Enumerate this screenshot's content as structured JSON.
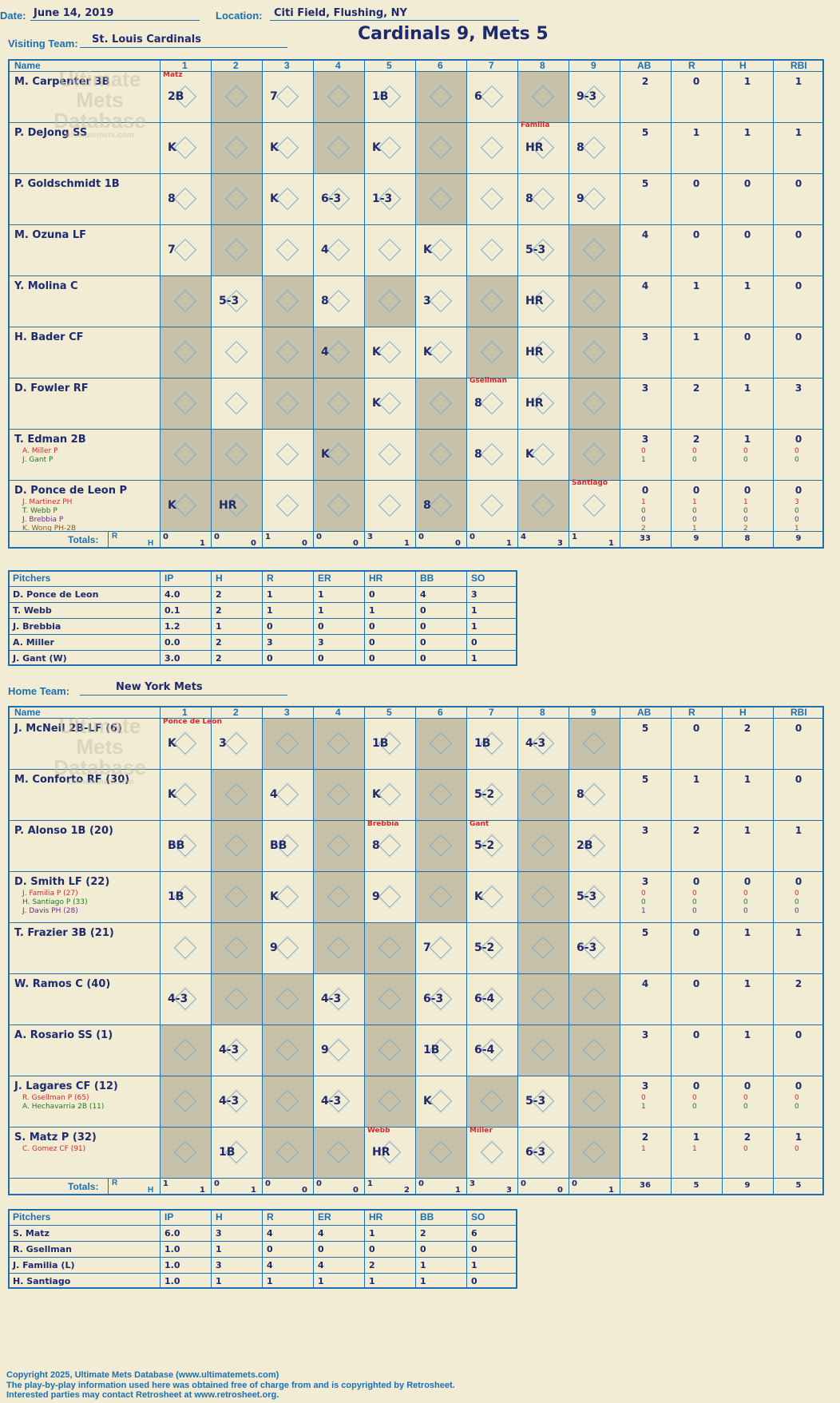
{
  "header": {
    "date_label": "Date:",
    "date_value": "June 14, 2019",
    "location_label": "Location:",
    "location_value": "Citi Field, Flushing, NY",
    "visiting_label": "Visiting Team:",
    "visiting_value": "St. Louis Cardinals",
    "home_label": "Home Team:",
    "home_value": "New York Mets",
    "game_title": "Cardinals 9, Mets 5"
  },
  "watermark": {
    "line1": "Ultimate",
    "line2": "Mets",
    "line3": "Database",
    "line4": "ultimatemets.com"
  },
  "columns": {
    "name": "Name",
    "innings": [
      "1",
      "2",
      "3",
      "4",
      "5",
      "6",
      "7",
      "8",
      "9"
    ],
    "stats": [
      "AB",
      "R",
      "H",
      "RBI"
    ],
    "totals": "Totals:",
    "r": "R",
    "h": "H"
  },
  "visitors": {
    "batters": [
      {
        "name": "M. Carpenter 3B",
        "subs": [],
        "ab": "2",
        "r": "0",
        "h": "1",
        "rbi": "1"
      },
      {
        "name": "P. DeJong SS",
        "subs": [],
        "ab": "5",
        "r": "1",
        "h": "1",
        "rbi": "1"
      },
      {
        "name": "P. Goldschmidt 1B",
        "subs": [],
        "ab": "5",
        "r": "0",
        "h": "0",
        "rbi": "0"
      },
      {
        "name": "M. Ozuna LF",
        "subs": [],
        "ab": "4",
        "r": "0",
        "h": "0",
        "rbi": "0"
      },
      {
        "name": "Y. Molina C",
        "subs": [],
        "ab": "4",
        "r": "1",
        "h": "1",
        "rbi": "0"
      },
      {
        "name": "H. Bader CF",
        "subs": [],
        "ab": "3",
        "r": "1",
        "h": "0",
        "rbi": "0"
      },
      {
        "name": "D. Fowler RF",
        "subs": [],
        "ab": "3",
        "r": "2",
        "h": "1",
        "rbi": "3"
      },
      {
        "name": "T. Edman 2B",
        "subs": [
          {
            "name": "A. Miller P",
            "color": "#d8262a",
            "ab": "0",
            "r": "0",
            "h": "0",
            "rbi": "0"
          },
          {
            "name": "J. Gant P",
            "color": "#1d7a1d",
            "ab": "1",
            "r": "0",
            "h": "0",
            "rbi": "0"
          }
        ],
        "ab": "3",
        "r": "2",
        "h": "1",
        "rbi": "0"
      },
      {
        "name": "D. Ponce de Leon P",
        "subs": [
          {
            "name": "J. Martinez PH",
            "color": "#d8262a",
            "ab": "1",
            "r": "1",
            "h": "1",
            "rbi": "3"
          },
          {
            "name": "T. Webb P",
            "color": "#1d7a1d",
            "ab": "0",
            "r": "0",
            "h": "0",
            "rbi": "0"
          },
          {
            "name": "J. Brebbia P",
            "color": "#6a2a8a",
            "ab": "0",
            "r": "0",
            "h": "0",
            "rbi": "0"
          },
          {
            "name": "K. Wong PH-2B",
            "color": "#8a5a1c",
            "ab": "2",
            "r": "1",
            "h": "2",
            "rbi": "1"
          }
        ],
        "ab": "0",
        "r": "0",
        "h": "0",
        "rbi": "0"
      }
    ],
    "marks": [
      [
        "2B",
        "K",
        "8",
        "7",
        "",
        "",
        "",
        "",
        "K"
      ],
      [
        "",
        "",
        "",
        "",
        "5-3",
        "",
        "",
        "",
        "HR"
      ],
      [
        "7",
        "K",
        "K",
        "",
        "",
        "",
        "",
        "",
        ""
      ],
      [
        "",
        "",
        "6-3",
        "4",
        "8",
        "4",
        "",
        "K",
        ""
      ],
      [
        "1B",
        "K",
        "1-3",
        "",
        "",
        "K",
        "K",
        "",
        ""
      ],
      [
        "",
        "",
        "",
        "K",
        "3",
        "K",
        "",
        "",
        "8"
      ],
      [
        "6",
        "",
        "",
        "",
        "",
        "",
        "8",
        "8",
        ""
      ],
      [
        "",
        "HR",
        "8",
        "5-3",
        "HR",
        "HR",
        "HR",
        "K",
        ""
      ],
      [
        "9-3",
        "8",
        "9",
        "",
        "",
        "",
        "",
        "",
        ""
      ]
    ],
    "totals": [
      [
        "0",
        "1"
      ],
      [
        "0",
        "0"
      ],
      [
        "1",
        "0"
      ],
      [
        "0",
        "0"
      ],
      [
        "3",
        "1"
      ],
      [
        "0",
        "0"
      ],
      [
        "0",
        "1"
      ],
      [
        "4",
        "3"
      ],
      [
        "1",
        "1"
      ]
    ],
    "totals_stats": {
      "ab": "33",
      "r": "9",
      "h": "8",
      "rbi": "9"
    },
    "pitchers_header": [
      "Pitchers",
      "IP",
      "H",
      "R",
      "ER",
      "HR",
      "BB",
      "SO"
    ],
    "pitchers": [
      [
        "D. Ponce de Leon",
        "4.0",
        "2",
        "1",
        "1",
        "0",
        "4",
        "3"
      ],
      [
        "T. Webb",
        "0.1",
        "2",
        "1",
        "1",
        "1",
        "0",
        "1"
      ],
      [
        "J. Brebbia",
        "1.2",
        "1",
        "0",
        "0",
        "0",
        "0",
        "1"
      ],
      [
        "A. Miller",
        "0.0",
        "2",
        "3",
        "3",
        "0",
        "0",
        "0"
      ],
      [
        "J. Gant (W)",
        "3.0",
        "2",
        "0",
        "0",
        "0",
        "0",
        "1"
      ]
    ]
  },
  "home": {
    "batters": [
      {
        "name": "J. McNeil 2B-LF (6)",
        "subs": [],
        "ab": "5",
        "r": "0",
        "h": "2",
        "rbi": "0"
      },
      {
        "name": "M. Conforto RF (30)",
        "subs": [],
        "ab": "5",
        "r": "1",
        "h": "1",
        "rbi": "0"
      },
      {
        "name": "P. Alonso 1B (20)",
        "subs": [],
        "ab": "3",
        "r": "2",
        "h": "1",
        "rbi": "1"
      },
      {
        "name": "D. Smith LF (22)",
        "subs": [
          {
            "name": "J. Familia P (27)",
            "color": "#d8262a",
            "ab": "0",
            "r": "0",
            "h": "0",
            "rbi": "0"
          },
          {
            "name": "H. Santiago P (33)",
            "color": "#1d7a1d",
            "ab": "0",
            "r": "0",
            "h": "0",
            "rbi": "0"
          },
          {
            "name": "J. Davis PH (28)",
            "color": "#6a2a8a",
            "ab": "1",
            "r": "0",
            "h": "0",
            "rbi": "0"
          }
        ],
        "ab": "3",
        "r": "0",
        "h": "0",
        "rbi": "0"
      },
      {
        "name": "T. Frazier 3B (21)",
        "subs": [],
        "ab": "5",
        "r": "0",
        "h": "1",
        "rbi": "1"
      },
      {
        "name": "W. Ramos C (40)",
        "subs": [],
        "ab": "4",
        "r": "0",
        "h": "1",
        "rbi": "2"
      },
      {
        "name": "A. Rosario SS (1)",
        "subs": [],
        "ab": "3",
        "r": "0",
        "h": "1",
        "rbi": "0"
      },
      {
        "name": "J. Lagares CF (12)",
        "subs": [
          {
            "name": "R. Gsellman P (65)",
            "color": "#d8262a",
            "ab": "0",
            "r": "0",
            "h": "0",
            "rbi": "0"
          },
          {
            "name": "A. Hechavarria 2B (11)",
            "color": "#1d7a1d",
            "ab": "1",
            "r": "0",
            "h": "0",
            "rbi": "0"
          }
        ],
        "ab": "3",
        "r": "0",
        "h": "0",
        "rbi": "0"
      },
      {
        "name": "S. Matz P (32)",
        "subs": [
          {
            "name": "C. Gomez CF (91)",
            "color": "#d8262a",
            "ab": "1",
            "r": "1",
            "h": "0",
            "rbi": "0"
          }
        ],
        "ab": "2",
        "r": "1",
        "h": "2",
        "rbi": "1"
      }
    ],
    "marks": [
      [
        "K",
        "K",
        "BB",
        "1B",
        "",
        "4-3",
        "",
        "",
        ""
      ],
      [
        "3",
        "",
        "",
        "",
        "",
        "",
        "4-3",
        "4-3",
        "1B"
      ],
      [
        "",
        "4",
        "BB",
        "K",
        "9",
        "",
        "",
        "",
        ""
      ],
      [
        "",
        "",
        "",
        "",
        "",
        "4-3",
        "9",
        "4-3",
        ""
      ],
      [
        "1B",
        "K",
        "8",
        "9",
        "",
        "",
        "",
        "",
        "HR"
      ],
      [
        "",
        "",
        "",
        "",
        "7",
        "6-3",
        "1B",
        "K",
        ""
      ],
      [
        "1B",
        "5-2",
        "5-2",
        "K",
        "5-2",
        "6-4",
        "6-4",
        "",
        ""
      ],
      [
        "4-3",
        "",
        "",
        "",
        "",
        "",
        "",
        "5-3",
        "6-3"
      ],
      [
        "",
        "8",
        "2B",
        "5-3",
        "6-3",
        "",
        "",
        "",
        ""
      ]
    ],
    "totals": [
      [
        "1",
        "1"
      ],
      [
        "0",
        "1"
      ],
      [
        "0",
        "0"
      ],
      [
        "0",
        "0"
      ],
      [
        "1",
        "2"
      ],
      [
        "0",
        "1"
      ],
      [
        "3",
        "3"
      ],
      [
        "0",
        "0"
      ],
      [
        "0",
        "1"
      ]
    ],
    "totals_stats": {
      "ab": "36",
      "r": "5",
      "h": "9",
      "rbi": "5"
    },
    "pitchers_header": [
      "Pitchers",
      "IP",
      "H",
      "R",
      "ER",
      "HR",
      "BB",
      "SO"
    ],
    "pitchers": [
      [
        "S. Matz",
        "6.0",
        "3",
        "4",
        "4",
        "1",
        "2",
        "6"
      ],
      [
        "R. Gsellman",
        "1.0",
        "1",
        "0",
        "0",
        "0",
        "0",
        "0"
      ],
      [
        "J. Familia (L)",
        "1.0",
        "3",
        "4",
        "4",
        "2",
        "1",
        "1"
      ],
      [
        "H. Santiago",
        "1.0",
        "1",
        "1",
        "1",
        "1",
        "1",
        "0"
      ]
    ]
  },
  "annotations": {
    "v_matz": "Matz",
    "v_familia": "Familia",
    "v_gsellman": "Gsellman",
    "v_santiago": "Santiago",
    "h_poncedeleon": "Ponce de Leon",
    "h_brebbia": "Brebbia",
    "h_gant": "Gant",
    "h_webb": "Webb",
    "h_miller": "Miller"
  },
  "footer": {
    "line1": "Copyright 2025, Ultimate Mets Database (www.ultimatemets.com)",
    "line2": "The play-by-play information used here was obtained free of charge from and is copyrighted by Retrosheet.",
    "line3": "Interested parties may contact Retrosheet at www.retrosheet.org."
  }
}
